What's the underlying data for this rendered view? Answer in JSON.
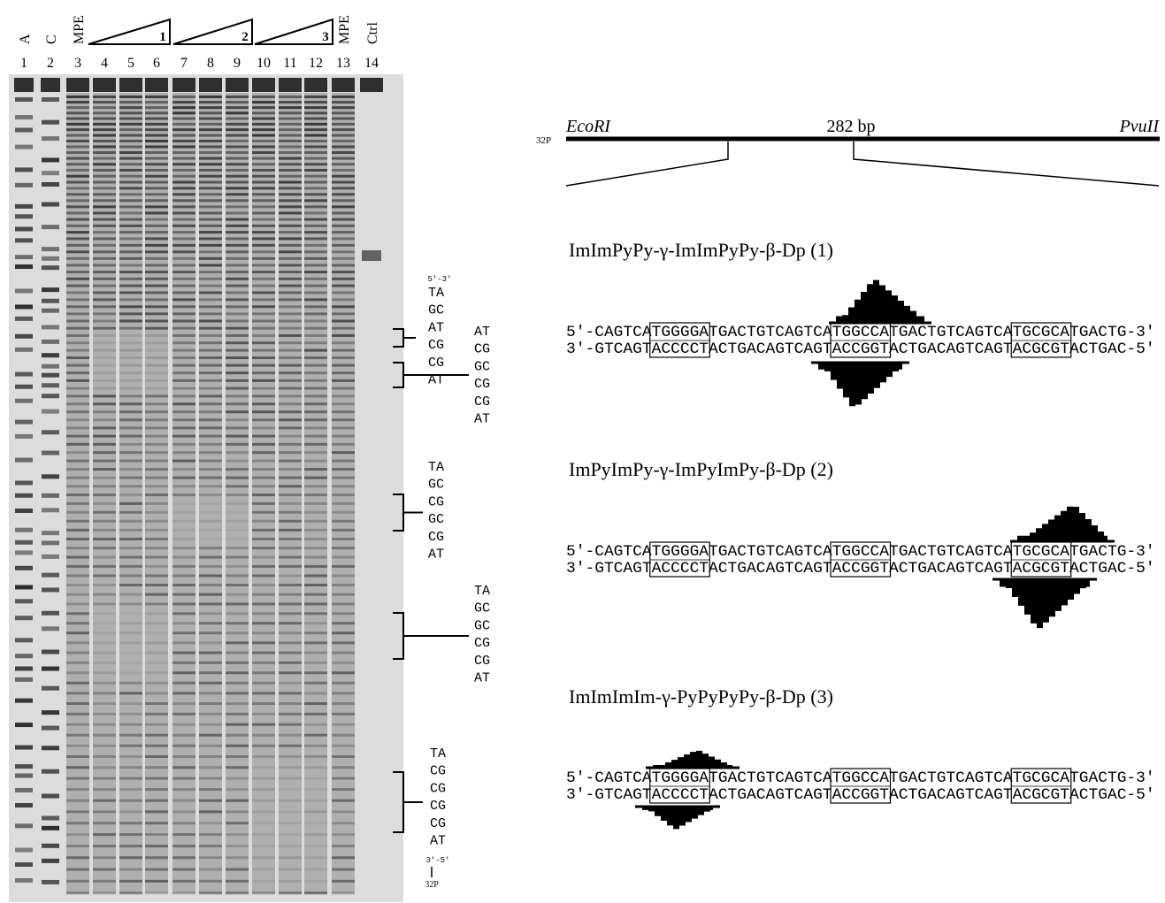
{
  "gel": {
    "headers": [
      "A",
      "C",
      "MPE",
      null,
      null,
      null,
      null,
      null,
      null,
      null,
      null,
      null,
      "MPE",
      "Ctrl"
    ],
    "numbers": [
      "1",
      "2",
      "3",
      "4",
      "5",
      "6",
      "7",
      "8",
      "9",
      "10",
      "11",
      "12",
      "13",
      "14"
    ],
    "titrations": [
      "1",
      "2",
      "3"
    ],
    "top_end": "5'-3'",
    "bottom_end": "3'-5'",
    "label": "32P",
    "sequence_groups": [
      [
        "TA",
        "GC",
        "AT",
        "CG",
        "CG",
        "AT"
      ],
      [
        "AT",
        "CG",
        "GC",
        "CG",
        "CG",
        "AT"
      ],
      [
        "TA",
        "GC",
        "CG",
        "GC",
        "CG",
        "AT"
      ],
      [
        "TA",
        "GC",
        "GC",
        "CG",
        "CG",
        "AT"
      ],
      [
        "TA",
        "CG",
        "CG",
        "CG",
        "CG",
        "AT"
      ]
    ]
  },
  "map": {
    "label": "32P",
    "left_site": "EcoRI",
    "length": "282 bp",
    "right_site": "PvuII"
  },
  "panels": [
    {
      "title": "ImImPyPy-γ-ImImPyPy-β-Dp (1)",
      "top": "5'-CAGTCATGGGGATGACTGTCAGTCATGGCCATGACTGTCAGTCATGCGCATGACTG-3'",
      "bottom": "3'-GTCAGTACCCCTACTGACAGTCAGTACCGGTACTGACAGTCAGTACGCGTACTGAC-5'"
    },
    {
      "title": "ImPyImPy-γ-ImPyImPy-β-Dp (2)",
      "top": "5'-CAGTCATGGGGATGACTGTCAGTCATGGCCATGACTGTCAGTCATGCGCATGACTG-3'",
      "bottom": "3'-GTCAGTACCCCTACTGACAGTCAGTACCGGTACTGACAGTCAGTACGCGTACTGAC-5'"
    },
    {
      "title": "ImImImIm-γ-PyPyPyPy-β-Dp (3)",
      "top": "5'-CAGTCATGGGGATGACTGTCAGTCATGGCCATGACTGTCAGTCATGCGCATGACTG-3'",
      "bottom": "3'-GTCAGTACCCCTACTGACAGTCAGTACCGGTACTGACAGTCAGTACGCGTACTGAC-5'"
    }
  ]
}
